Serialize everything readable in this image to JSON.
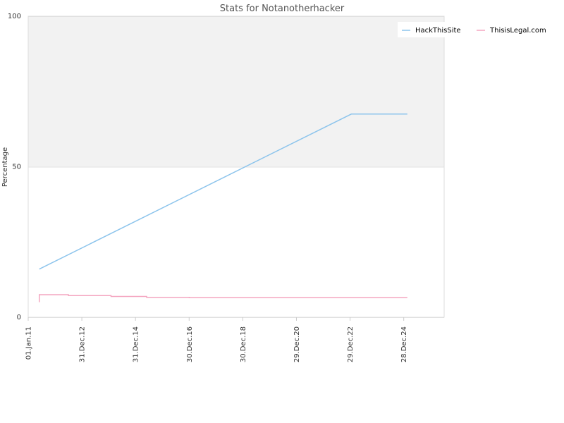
{
  "chart_data": {
    "type": "line",
    "title": "Stats for Notanotherhacker",
    "xlabel": "",
    "ylabel": "Percentage",
    "ylim": [
      0,
      100
    ],
    "yticks": [
      0,
      50,
      100
    ],
    "xlim": [
      "2011-01-01",
      "2026-07-01"
    ],
    "xticks": [
      {
        "label": "01.Jan.11",
        "date": "2011-01-01"
      },
      {
        "label": "31.Dec.12",
        "date": "2012-12-31"
      },
      {
        "label": "31.Dec.14",
        "date": "2014-12-31"
      },
      {
        "label": "30.Dec.16",
        "date": "2016-12-30"
      },
      {
        "label": "30.Dec.18",
        "date": "2018-12-30"
      },
      {
        "label": "29.Dec.20",
        "date": "2020-12-29"
      },
      {
        "label": "29.Dec.22",
        "date": "2022-12-29"
      },
      {
        "label": "28.Dec.24",
        "date": "2024-12-28"
      }
    ],
    "grid": true,
    "band": {
      "from": 50,
      "to": 100,
      "color": "#f2f2f2"
    },
    "legend_position": "top-right",
    "series": [
      {
        "name": "HackThisSite",
        "color": "#8cc4ec",
        "points": [
          [
            "2011-06-01",
            16
          ],
          [
            "2023-01-15",
            67.5
          ],
          [
            "2025-02-15",
            67.5
          ]
        ]
      },
      {
        "name": "ThisisLegal.com",
        "color": "#f4a6c0",
        "points": [
          [
            "2011-06-01",
            5
          ],
          [
            "2011-06-01",
            7.5
          ],
          [
            "2012-07-01",
            7.5
          ],
          [
            "2012-07-01",
            7.2
          ],
          [
            "2014-02-01",
            7.2
          ],
          [
            "2014-02-01",
            6.9
          ],
          [
            "2015-06-01",
            6.9
          ],
          [
            "2015-06-01",
            6.6
          ],
          [
            "2017-01-01",
            6.6
          ],
          [
            "2017-01-01",
            6.5
          ],
          [
            "2025-02-15",
            6.5
          ]
        ]
      }
    ]
  }
}
